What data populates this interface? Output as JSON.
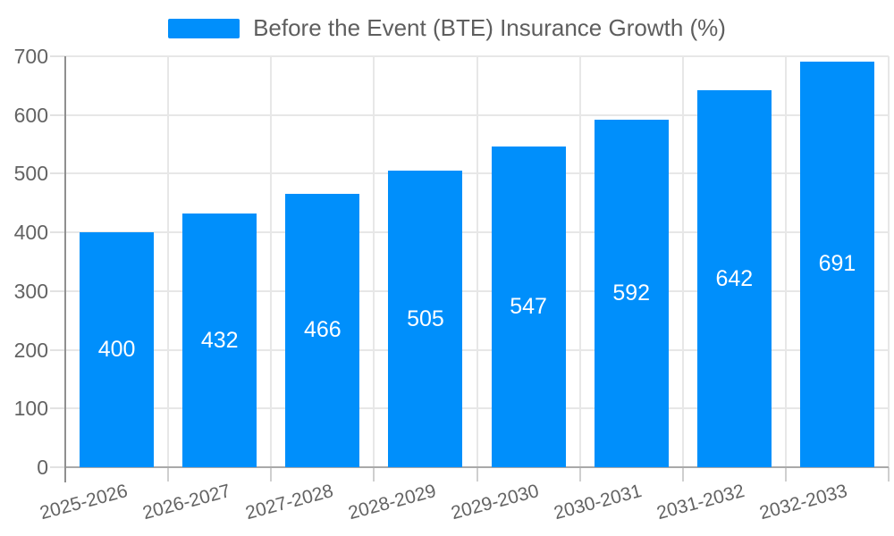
{
  "chart_data": {
    "type": "bar",
    "title": "Before the Event (BTE) Insurance Growth (%)",
    "categories": [
      "2025-2026",
      "2026-2027",
      "2027-2028",
      "2028-2029",
      "2029-2030",
      "2030-2031",
      "2031-2032",
      "2032-2033"
    ],
    "series": [
      {
        "name": "Before the Event (BTE) Insurance Growth (%)",
        "values": [
          400,
          432,
          466,
          505,
          547,
          592,
          642,
          691
        ]
      }
    ],
    "values": [
      400,
      432,
      466,
      505,
      547,
      592,
      642,
      691
    ],
    "value_labels": [
      "400",
      "432",
      "466",
      "505",
      "547",
      "592",
      "642",
      "691"
    ],
    "xlabel": "",
    "ylabel": "",
    "ylim": [
      0,
      700
    ],
    "yticks": [
      0,
      100,
      200,
      300,
      400,
      500,
      600,
      700
    ],
    "grid": true,
    "legend_position": "top",
    "colors": {
      "bar": "#008FFB",
      "bar_value_text": "#ffffff",
      "axis_text": "#636363",
      "legend_text": "#5e5e5e",
      "gridline": "#e7e7e7",
      "axis_line": "#8f8f8f"
    }
  }
}
